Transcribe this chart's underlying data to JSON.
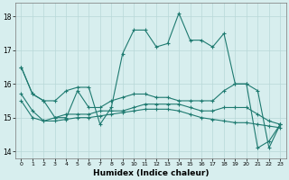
{
  "xlabel": "Humidex (Indice chaleur)",
  "bg_color": "#d7eeee",
  "grid_color": "#b8d8d8",
  "line_color": "#1e7a70",
  "xlim": [
    -0.5,
    23.5
  ],
  "ylim": [
    13.8,
    18.4
  ],
  "yticks": [
    14,
    15,
    16,
    17,
    18
  ],
  "xticks": [
    0,
    1,
    2,
    3,
    4,
    5,
    6,
    7,
    8,
    9,
    10,
    11,
    12,
    13,
    14,
    15,
    16,
    17,
    18,
    19,
    20,
    21,
    22,
    23
  ],
  "series": {
    "main": [
      16.5,
      15.7,
      15.5,
      15.5,
      15.8,
      15.9,
      15.9,
      14.8,
      15.3,
      16.9,
      17.6,
      17.6,
      17.1,
      17.2,
      18.1,
      17.3,
      17.3,
      17.1,
      17.5,
      16.0,
      16.0,
      14.1,
      14.3,
      14.8
    ],
    "rise": [
      16.5,
      15.7,
      15.5,
      15.0,
      15.0,
      15.8,
      15.3,
      15.3,
      15.5,
      15.6,
      15.7,
      15.7,
      15.6,
      15.6,
      15.5,
      15.5,
      15.5,
      15.5,
      15.8,
      16.0,
      16.0,
      15.8,
      14.1,
      14.8
    ],
    "flat1": [
      15.7,
      15.2,
      14.9,
      15.0,
      15.1,
      15.1,
      15.1,
      15.2,
      15.2,
      15.2,
      15.3,
      15.4,
      15.4,
      15.4,
      15.4,
      15.3,
      15.2,
      15.2,
      15.3,
      15.3,
      15.3,
      15.1,
      14.9,
      14.8
    ],
    "flat2": [
      15.5,
      15.0,
      14.9,
      14.9,
      14.95,
      15.0,
      15.0,
      15.05,
      15.1,
      15.15,
      15.2,
      15.25,
      15.25,
      15.25,
      15.2,
      15.1,
      15.0,
      14.95,
      14.9,
      14.85,
      14.85,
      14.8,
      14.75,
      14.7
    ]
  }
}
